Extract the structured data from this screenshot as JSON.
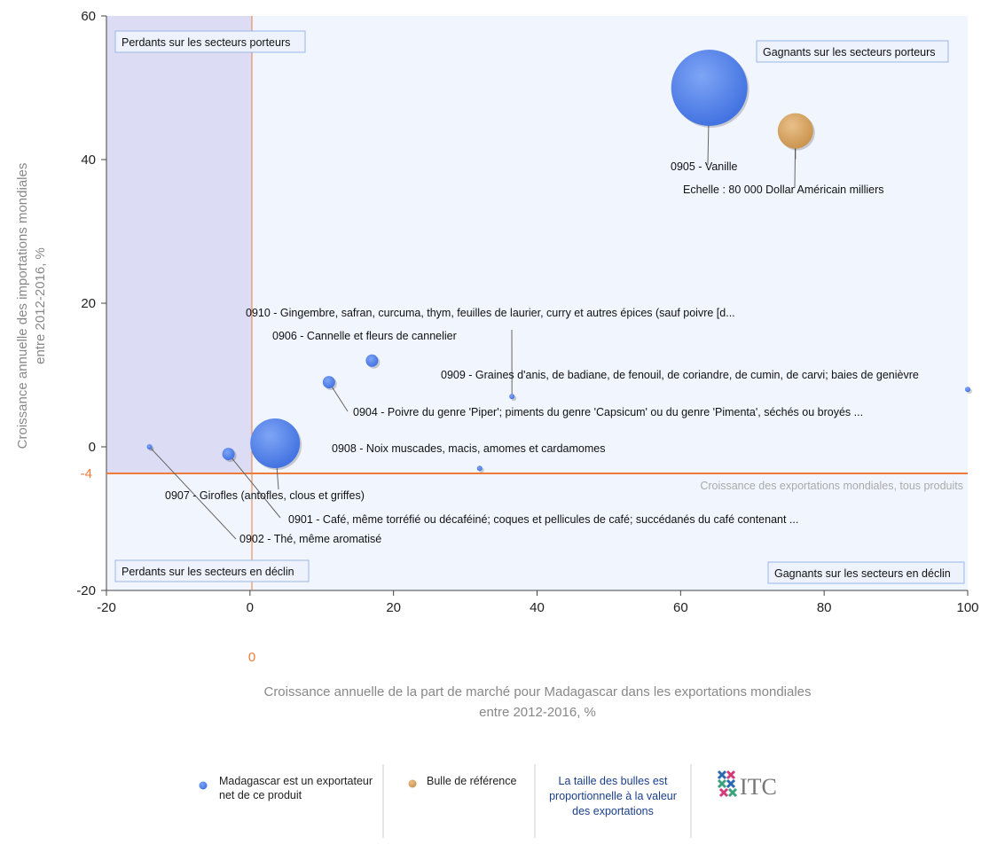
{
  "chart_data": {
    "type": "scatter",
    "subtype": "bubble",
    "xlabel": "Croissance annuelle de la part de marché pour Madagascar dans les exportations mondiales entre 2012-2016, %",
    "xlabel_lines": [
      "Croissance annuelle de la part de marché pour Madagascar dans les exportations mondiales",
      "entre 2012-2016, %"
    ],
    "ylabel_lines": [
      "Croissance annuelle des importations mondiales",
      "entre 2012-2016, %"
    ],
    "xlim": [
      -20,
      100
    ],
    "ylim": [
      -20,
      60
    ],
    "xticks": [
      -20,
      0,
      20,
      40,
      60,
      80,
      100
    ],
    "yticks": [
      -20,
      0,
      20,
      40,
      60
    ],
    "grid": false,
    "reference_lines": {
      "x": 0,
      "x_label": "0",
      "y": -4,
      "y_label": "-4",
      "y_line_label": "Croissance des exportations mondiales, tous produits"
    },
    "quadrant_labels": {
      "top_left": "Perdants sur les secteurs porteurs",
      "top_right": "Gagnants sur les secteurs porteurs",
      "bottom_left": "Perdants sur les secteurs en déclin",
      "bottom_right": "Gagnants sur les secteurs en déclin"
    },
    "colors": {
      "net_exporter": "#4f7fe8",
      "reference": "#d6a35c",
      "reference_line": "#f07a3a",
      "top_left_shade": "#dcdcf4",
      "plot_bg": "#f1f5fd"
    },
    "series": [
      {
        "name": "Madagascar est un exportateur net de ce produit",
        "points": [
          {
            "label": "0905 - Vanille",
            "x": 64,
            "y": 50,
            "size": "very large"
          },
          {
            "label": "0910 - Gingembre, safran, curcuma, thym, feuilles de laurier, curry et autres épices (sauf poivre [d...",
            "x": 36.5,
            "y": 7,
            "size": "tiny"
          },
          {
            "label": "0906 - Cannelle et fleurs de cannelier",
            "x": 17,
            "y": 12,
            "size": "small"
          },
          {
            "label": "0909 - Graines d'anis, de badiane, de fenouil, de coriandre, de cumin, de carvi; baies de genièvre",
            "x": 100,
            "y": 8,
            "size": "tiny"
          },
          {
            "label": "0904 - Poivre du genre 'Piper'; piments du genre 'Capsicum' ou du genre 'Pimenta', séchés ou broyés ...",
            "x": 11,
            "y": 9,
            "size": "small"
          },
          {
            "label": "0908 - Noix muscades, macis, amomes et cardamomes",
            "x": 32,
            "y": -3,
            "size": "tiny"
          },
          {
            "label": "0907 - Girofles (antofles, clous et griffes)",
            "x": 3.5,
            "y": 0.5,
            "size": "large"
          },
          {
            "label": "0901 - Café, même torréfié ou décaféiné; coques et pellicules de café; succédanés du café contenant ...",
            "x": -3,
            "y": -1,
            "size": "small"
          },
          {
            "label": "0902 - Thé, même aromatisé",
            "x": -14,
            "y": 0,
            "size": "tiny"
          }
        ]
      },
      {
        "name": "Bulle de référence",
        "points": [
          {
            "label": "Echelle : 80 000 Dollar Américain milliers",
            "x": 76,
            "y": 44,
            "size": "medium"
          }
        ]
      }
    ]
  },
  "legend": {
    "net_exporter": [
      "Madagascar est un exportateur",
      "net de ce produit"
    ],
    "reference": "Bulle de référence",
    "size_note": [
      "La taille des bulles est",
      "proportionnelle à la valeur",
      "des exportations"
    ],
    "logo_text": "ITC"
  }
}
